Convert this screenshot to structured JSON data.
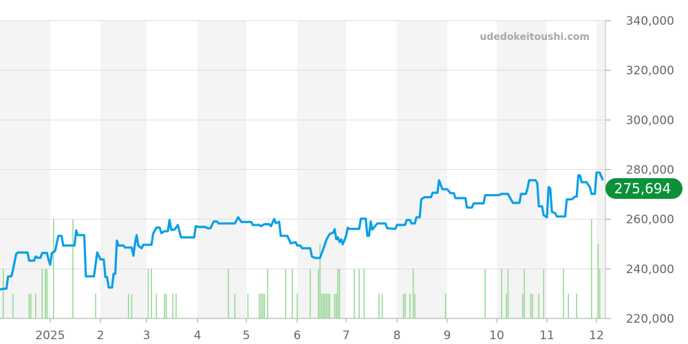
{
  "watermark": "udedokeitoushi.com",
  "chart_data": {
    "type": "line",
    "title": "",
    "xlabel": "",
    "ylabel": "",
    "ylim": [
      220000,
      340000
    ],
    "y_ticks": [
      "220,000",
      "240,000",
      "260,000",
      "280,000",
      "300,000",
      "320,000",
      "340,000"
    ],
    "y_tick_values": [
      220000,
      240000,
      260000,
      280000,
      300000,
      320000,
      340000
    ],
    "x_tick_labels": [
      "2025",
      "2",
      "3",
      "4",
      "5",
      "6",
      "7",
      "8",
      "9",
      "10",
      "11",
      "12"
    ],
    "x_range": [
      "2024-12-01",
      "2025-12-06"
    ],
    "grid": true,
    "alternating_month_shading": true,
    "current_value": 275694,
    "current_value_label": "275,694",
    "colors": {
      "price_line": "#079fe6",
      "volume_bars": "#8fd68f",
      "badge": "#0a9139",
      "shade": "#f4f4f4",
      "grid": "#dddddd"
    },
    "price_series": [
      [
        "2024-12-01",
        231700
      ],
      [
        "2024-12-03",
        232000
      ],
      [
        "2024-12-05",
        232000
      ],
      [
        "2024-12-06",
        237000
      ],
      [
        "2024-12-08",
        237000
      ],
      [
        "2024-12-09",
        239500
      ],
      [
        "2024-12-11",
        246000
      ],
      [
        "2024-12-12",
        246600
      ],
      [
        "2024-12-18",
        246600
      ],
      [
        "2024-12-19",
        243300
      ],
      [
        "2024-12-22",
        243300
      ],
      [
        "2024-12-23",
        245000
      ],
      [
        "2024-12-24",
        244500
      ],
      [
        "2024-12-26",
        244500
      ],
      [
        "2024-12-27",
        246400
      ],
      [
        "2024-12-30",
        246400
      ],
      [
        "2024-12-31",
        243600
      ],
      [
        "2025-01-01",
        241700
      ],
      [
        "2025-01-02",
        246400
      ],
      [
        "2025-01-04",
        247200
      ],
      [
        "2025-01-06",
        253300
      ],
      [
        "2025-01-08",
        253300
      ],
      [
        "2025-01-09",
        249400
      ],
      [
        "2025-01-16",
        249400
      ],
      [
        "2025-01-17",
        255500
      ],
      [
        "2025-01-18",
        253600
      ],
      [
        "2025-01-22",
        253600
      ],
      [
        "2025-01-23",
        237000
      ],
      [
        "2025-01-28",
        237000
      ],
      [
        "2025-01-30",
        246600
      ],
      [
        "2025-02-01",
        243800
      ],
      [
        "2025-02-03",
        243800
      ],
      [
        "2025-02-04",
        236700
      ],
      [
        "2025-02-05",
        236700
      ],
      [
        "2025-02-06",
        232500
      ],
      [
        "2025-02-08",
        232500
      ],
      [
        "2025-02-09",
        238000
      ],
      [
        "2025-02-10",
        238000
      ],
      [
        "2025-02-11",
        251400
      ],
      [
        "2025-02-12",
        249400
      ],
      [
        "2025-02-15",
        249400
      ],
      [
        "2025-02-16",
        248600
      ],
      [
        "2025-02-20",
        248600
      ],
      [
        "2025-02-21",
        245300
      ],
      [
        "2025-02-22",
        250300
      ],
      [
        "2025-02-23",
        253600
      ],
      [
        "2025-02-24",
        249400
      ],
      [
        "2025-02-26",
        248300
      ],
      [
        "2025-02-27",
        249700
      ],
      [
        "2025-03-04",
        249700
      ],
      [
        "2025-03-05",
        254100
      ],
      [
        "2025-03-07",
        256600
      ],
      [
        "2025-03-09",
        256600
      ],
      [
        "2025-03-10",
        254400
      ],
      [
        "2025-03-12",
        255200
      ],
      [
        "2025-03-14",
        255200
      ],
      [
        "2025-03-15",
        259700
      ],
      [
        "2025-03-16",
        255800
      ],
      [
        "2025-03-18",
        255800
      ],
      [
        "2025-03-20",
        257700
      ],
      [
        "2025-03-22",
        252700
      ],
      [
        "2025-03-30",
        252700
      ],
      [
        "2025-03-31",
        257200
      ],
      [
        "2025-04-02",
        256900
      ],
      [
        "2025-04-06",
        256900
      ],
      [
        "2025-04-07",
        256400
      ],
      [
        "2025-04-09",
        256400
      ],
      [
        "2025-04-11",
        259100
      ],
      [
        "2025-04-13",
        259100
      ],
      [
        "2025-04-14",
        258300
      ],
      [
        "2025-04-24",
        258300
      ],
      [
        "2025-04-26",
        260800
      ],
      [
        "2025-04-28",
        258900
      ],
      [
        "2025-05-04",
        258900
      ],
      [
        "2025-05-05",
        257700
      ],
      [
        "2025-05-09",
        257700
      ],
      [
        "2025-05-10",
        257200
      ],
      [
        "2025-05-12",
        258000
      ],
      [
        "2025-05-15",
        258000
      ],
      [
        "2025-05-16",
        257200
      ],
      [
        "2025-05-18",
        260100
      ],
      [
        "2025-05-19",
        258400
      ],
      [
        "2025-05-21",
        259000
      ],
      [
        "2025-05-22",
        253300
      ],
      [
        "2025-05-26",
        253300
      ],
      [
        "2025-05-28",
        250300
      ],
      [
        "2025-05-31",
        250800
      ],
      [
        "2025-06-01",
        249400
      ],
      [
        "2025-06-03",
        249400
      ],
      [
        "2025-06-04",
        248300
      ],
      [
        "2025-06-09",
        248300
      ],
      [
        "2025-06-10",
        245000
      ],
      [
        "2025-06-12",
        244400
      ],
      [
        "2025-06-15",
        244400
      ],
      [
        "2025-06-17",
        248000
      ],
      [
        "2025-06-19",
        251900
      ],
      [
        "2025-06-21",
        254100
      ],
      [
        "2025-06-23",
        254600
      ],
      [
        "2025-06-24",
        256000
      ],
      [
        "2025-06-25",
        251900
      ],
      [
        "2025-06-26",
        252700
      ],
      [
        "2025-06-27",
        250800
      ],
      [
        "2025-06-28",
        251900
      ],
      [
        "2025-06-29",
        249900
      ],
      [
        "2025-07-01",
        253300
      ],
      [
        "2025-07-02",
        256600
      ],
      [
        "2025-07-03",
        256100
      ],
      [
        "2025-07-09",
        256100
      ],
      [
        "2025-07-10",
        260200
      ],
      [
        "2025-07-13",
        260200
      ],
      [
        "2025-07-14",
        253300
      ],
      [
        "2025-07-15",
        253300
      ],
      [
        "2025-07-16",
        259100
      ],
      [
        "2025-07-17",
        255800
      ],
      [
        "2025-07-20",
        258300
      ],
      [
        "2025-07-25",
        258300
      ],
      [
        "2025-07-26",
        256400
      ],
      [
        "2025-07-31",
        256100
      ],
      [
        "2025-08-01",
        257700
      ],
      [
        "2025-08-06",
        257700
      ],
      [
        "2025-08-07",
        259700
      ],
      [
        "2025-08-09",
        259700
      ],
      [
        "2025-08-10",
        258300
      ],
      [
        "2025-08-12",
        258300
      ],
      [
        "2025-08-13",
        260800
      ],
      [
        "2025-08-15",
        260800
      ],
      [
        "2025-08-16",
        268000
      ],
      [
        "2025-08-18",
        268900
      ],
      [
        "2025-08-22",
        268900
      ],
      [
        "2025-08-23",
        270700
      ],
      [
        "2025-08-26",
        270700
      ],
      [
        "2025-08-27",
        275700
      ],
      [
        "2025-08-29",
        272100
      ],
      [
        "2025-09-01",
        272100
      ],
      [
        "2025-09-03",
        270500
      ],
      [
        "2025-09-05",
        270500
      ],
      [
        "2025-09-06",
        268500
      ],
      [
        "2025-09-12",
        268500
      ],
      [
        "2025-09-13",
        264700
      ],
      [
        "2025-09-16",
        264700
      ],
      [
        "2025-09-17",
        266400
      ],
      [
        "2025-09-23",
        266400
      ],
      [
        "2025-09-24",
        269700
      ],
      [
        "2025-09-30",
        269700
      ],
      [
        "2025-10-02",
        269700
      ],
      [
        "2025-10-04",
        270200
      ],
      [
        "2025-10-08",
        270200
      ],
      [
        "2025-10-09",
        268900
      ],
      [
        "2025-10-11",
        266600
      ],
      [
        "2025-10-15",
        266600
      ],
      [
        "2025-10-16",
        270200
      ],
      [
        "2025-10-19",
        270200
      ],
      [
        "2025-10-20",
        272400
      ],
      [
        "2025-10-21",
        275700
      ],
      [
        "2025-10-25",
        275700
      ],
      [
        "2025-10-26",
        274600
      ],
      [
        "2025-10-27",
        265200
      ],
      [
        "2025-10-29",
        265200
      ],
      [
        "2025-10-30",
        261600
      ],
      [
        "2025-11-01",
        260800
      ],
      [
        "2025-11-02",
        273000
      ],
      [
        "2025-11-03",
        272400
      ],
      [
        "2025-11-04",
        263000
      ],
      [
        "2025-11-06",
        262400
      ],
      [
        "2025-11-07",
        261100
      ],
      [
        "2025-11-12",
        261100
      ],
      [
        "2025-11-13",
        268000
      ],
      [
        "2025-11-16",
        268000
      ],
      [
        "2025-11-18",
        269100
      ],
      [
        "2025-11-19",
        269100
      ],
      [
        "2025-11-20",
        277700
      ],
      [
        "2025-11-21",
        277700
      ],
      [
        "2025-11-22",
        274900
      ],
      [
        "2025-11-25",
        274900
      ],
      [
        "2025-11-27",
        272900
      ],
      [
        "2025-11-28",
        270200
      ],
      [
        "2025-11-30",
        270200
      ],
      [
        "2025-12-01",
        278800
      ],
      [
        "2025-12-03",
        278800
      ],
      [
        "2025-12-05",
        275694
      ]
    ],
    "volume_series": [
      [
        "2024-12-03",
        2
      ],
      [
        "2024-12-09",
        1
      ],
      [
        "2024-12-19",
        1
      ],
      [
        "2024-12-20",
        1
      ],
      [
        "2024-12-23",
        1
      ],
      [
        "2024-12-27",
        2
      ],
      [
        "2024-12-29",
        2
      ],
      [
        "2024-12-30",
        2
      ],
      [
        "2025-01-03",
        4
      ],
      [
        "2025-01-15",
        4
      ],
      [
        "2025-01-29",
        1
      ],
      [
        "2025-02-18",
        1
      ],
      [
        "2025-02-20",
        1
      ],
      [
        "2025-03-02",
        2
      ],
      [
        "2025-03-04",
        2
      ],
      [
        "2025-03-07",
        1
      ],
      [
        "2025-03-12",
        1
      ],
      [
        "2025-03-13",
        1
      ],
      [
        "2025-03-17",
        1
      ],
      [
        "2025-03-19",
        1
      ],
      [
        "2025-04-20",
        2
      ],
      [
        "2025-04-24",
        1
      ],
      [
        "2025-05-02",
        1
      ],
      [
        "2025-05-09",
        1
      ],
      [
        "2025-05-10",
        1
      ],
      [
        "2025-05-11",
        1
      ],
      [
        "2025-05-12",
        1
      ],
      [
        "2025-05-14",
        2
      ],
      [
        "2025-05-25",
        2
      ],
      [
        "2025-05-29",
        2
      ],
      [
        "2025-06-01",
        1
      ],
      [
        "2025-06-09",
        2
      ],
      [
        "2025-06-14",
        2
      ],
      [
        "2025-06-15",
        3
      ],
      [
        "2025-06-16",
        1
      ],
      [
        "2025-06-17",
        1
      ],
      [
        "2025-06-18",
        1
      ],
      [
        "2025-06-19",
        1
      ],
      [
        "2025-06-20",
        1
      ],
      [
        "2025-06-21",
        1
      ],
      [
        "2025-06-24",
        1
      ],
      [
        "2025-06-25",
        1
      ],
      [
        "2025-06-26",
        2
      ],
      [
        "2025-06-27",
        2
      ],
      [
        "2025-07-06",
        2
      ],
      [
        "2025-07-09",
        2
      ],
      [
        "2025-07-12",
        2
      ],
      [
        "2025-07-21",
        1
      ],
      [
        "2025-07-23",
        1
      ],
      [
        "2025-08-05",
        1
      ],
      [
        "2025-08-06",
        1
      ],
      [
        "2025-08-09",
        1
      ],
      [
        "2025-08-11",
        2
      ],
      [
        "2025-08-12",
        1
      ],
      [
        "2025-08-31",
        1
      ],
      [
        "2025-09-24",
        2
      ],
      [
        "2025-10-04",
        2
      ],
      [
        "2025-10-07",
        1
      ],
      [
        "2025-10-08",
        2
      ],
      [
        "2025-10-17",
        1
      ],
      [
        "2025-10-18",
        2
      ],
      [
        "2025-10-22",
        1
      ],
      [
        "2025-10-23",
        1
      ],
      [
        "2025-10-27",
        1
      ],
      [
        "2025-10-30",
        2
      ],
      [
        "2025-11-11",
        2
      ],
      [
        "2025-11-14",
        1
      ],
      [
        "2025-11-19",
        1
      ],
      [
        "2025-11-28",
        4
      ],
      [
        "2025-12-02",
        3
      ],
      [
        "2025-12-03",
        2
      ]
    ]
  }
}
